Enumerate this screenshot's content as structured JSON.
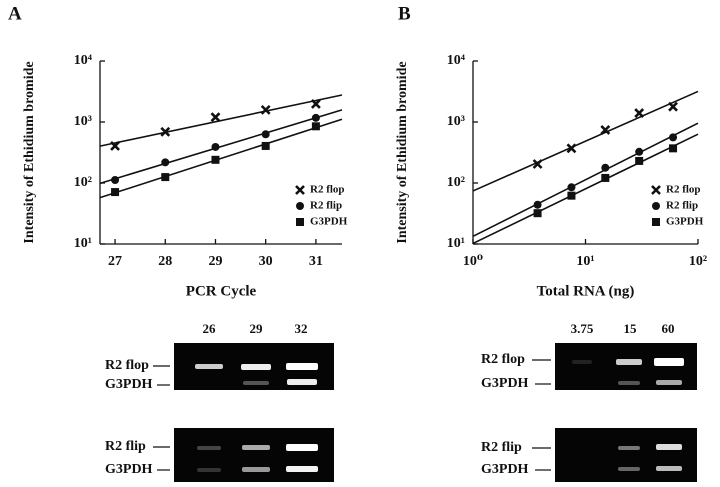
{
  "panel_labels": [
    "A",
    "B"
  ],
  "chart_data": [
    {
      "type": "scatter",
      "xlabel": "PCR Cycle",
      "ylabel": "Intensity of Ethidium bromide",
      "x": [
        27,
        28,
        29,
        30,
        31
      ],
      "xlim": [
        26.7,
        31.52
      ],
      "xticks": [
        27,
        28,
        29,
        30,
        31
      ],
      "ylog": true,
      "ylim": [
        10,
        10000
      ],
      "yticks": [
        {
          "value": 10,
          "label": "10¹"
        },
        {
          "value": 100,
          "label": "10²"
        },
        {
          "value": 1000,
          "label": "10³"
        },
        {
          "value": 10000,
          "label": "10⁴"
        }
      ],
      "fit_lines": true,
      "legend": "lower right",
      "series": [
        {
          "name": "R2 flop",
          "color": "#111111",
          "marker": "x",
          "values": [
            405,
            690,
            1200,
            1580,
            1980
          ]
        },
        {
          "name": "R2 flip",
          "color": "#111111",
          "marker": "circle",
          "values": [
            112,
            218,
            390,
            630,
            1170
          ]
        },
        {
          "name": "G3PDH",
          "color": "#111111",
          "marker": "square",
          "values": [
            71,
            125,
            240,
            405,
            850
          ]
        }
      ]
    },
    {
      "type": "scatter",
      "xlabel": "Total RNA (ng)",
      "ylabel": "Intensity of Ethidium bromide",
      "x": [
        3.75,
        7.5,
        15,
        30,
        60
      ],
      "xlog": true,
      "xlim": [
        1,
        100
      ],
      "xticks": [
        {
          "value": 1,
          "label": "10⁰"
        },
        {
          "value": 10,
          "label": "10¹"
        },
        {
          "value": 100,
          "label": "10²"
        }
      ],
      "ylog": true,
      "ylim": [
        10,
        10000
      ],
      "yticks": [
        {
          "value": 10,
          "label": "10¹"
        },
        {
          "value": 100,
          "label": "10²"
        },
        {
          "value": 1000,
          "label": "10³"
        },
        {
          "value": 10000,
          "label": "10⁴"
        }
      ],
      "fit_lines": true,
      "legend": "lower right",
      "series": [
        {
          "name": "R2 flop",
          "color": "#111111",
          "marker": "x",
          "values": [
            205,
            370,
            740,
            1400,
            1780
          ]
        },
        {
          "name": "R2 flip",
          "color": "#111111",
          "marker": "circle",
          "values": [
            44,
            85,
            178,
            325,
            560
          ]
        },
        {
          "name": "G3PDH",
          "color": "#111111",
          "marker": "square",
          "values": [
            32,
            62,
            121,
            230,
            370
          ]
        }
      ]
    }
  ],
  "gels": [
    {
      "lanes": [
        "26",
        "29",
        "32"
      ],
      "blots": [
        [
          "R2 flop",
          "G3PDH"
        ],
        [
          "R2 flip",
          "G3PDH"
        ]
      ]
    },
    {
      "lanes": [
        "3.75",
        "15",
        "60"
      ],
      "blots": [
        [
          "R2 flop",
          "G3PDH"
        ],
        [
          "R2 flip",
          "G3PDH"
        ]
      ]
    }
  ]
}
